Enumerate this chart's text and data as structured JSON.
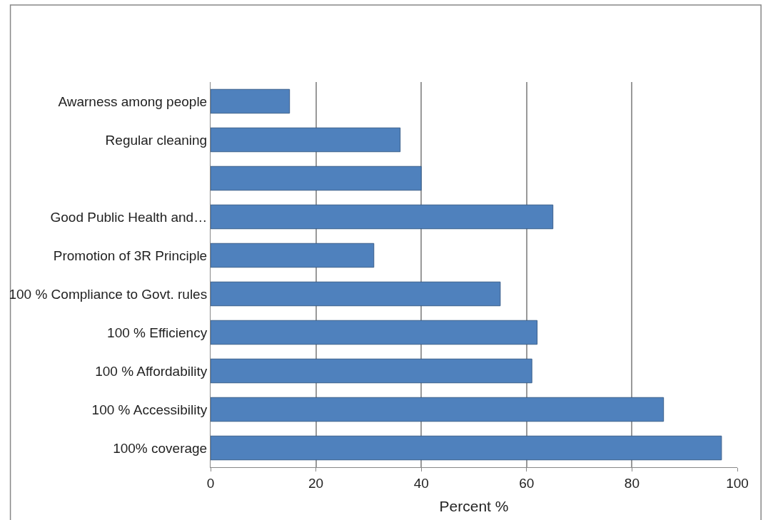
{
  "chart_data": {
    "type": "bar",
    "orientation": "horizontal",
    "xlabel": "Percent %",
    "categories": [
      "Awarness among people",
      "Regular cleaning",
      null,
      "Good Public Health and…",
      "Promotion of 3R Principle",
      "100 % Compliance to Govt. rules",
      "100 % Efficiency",
      "100 % Affordability",
      "100 % Accessibility",
      "100% coverage"
    ],
    "values": [
      15,
      36,
      40,
      65,
      31,
      55,
      62,
      61,
      86,
      97
    ],
    "color": "#4f81bd",
    "xlim": [
      0,
      100
    ],
    "xticks": [
      0,
      20,
      40,
      60,
      80,
      100
    ],
    "grid": "x"
  }
}
